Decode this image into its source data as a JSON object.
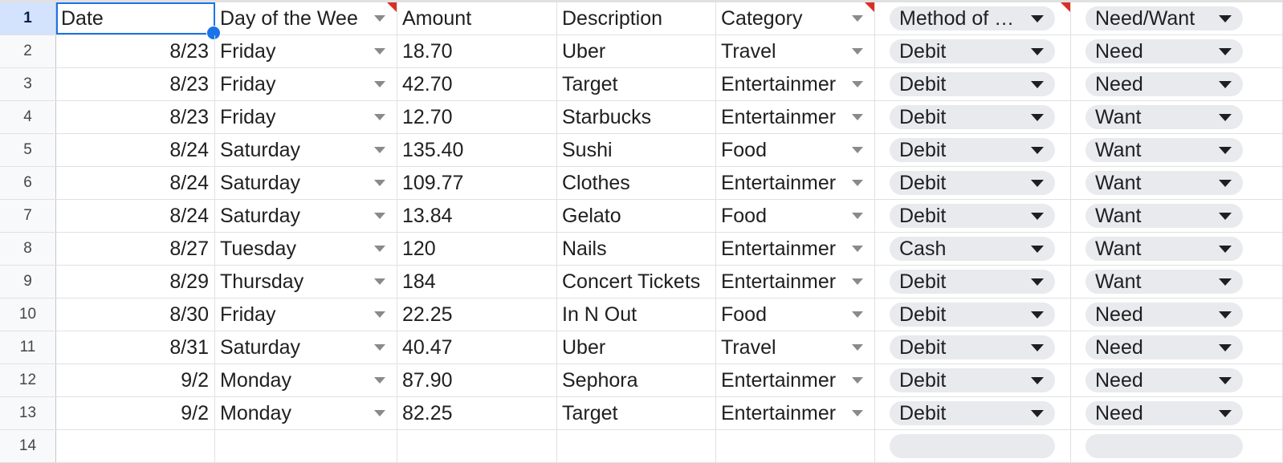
{
  "headers": {
    "row_number": "1",
    "date": "Date",
    "day": "Day of the Wee",
    "amount": "Amount",
    "description": "Description",
    "category": "Category",
    "method": "Method of Payment",
    "need_want": "Need/Want"
  },
  "rows": [
    {
      "num": "2",
      "date": "8/23",
      "day": "Friday",
      "amount": "18.70",
      "description": "Uber",
      "category": "Travel",
      "method": "Debit",
      "need_want": "Need"
    },
    {
      "num": "3",
      "date": "8/23",
      "day": "Friday",
      "amount": "42.70",
      "description": "Target",
      "category": "Entertainmer",
      "method": "Debit",
      "need_want": "Need"
    },
    {
      "num": "4",
      "date": "8/23",
      "day": "Friday",
      "amount": "12.70",
      "description": "Starbucks",
      "category": "Entertainmer",
      "method": "Debit",
      "need_want": "Want"
    },
    {
      "num": "5",
      "date": "8/24",
      "day": "Saturday",
      "amount": "135.40",
      "description": "Sushi",
      "category": "Food",
      "method": "Debit",
      "need_want": "Want"
    },
    {
      "num": "6",
      "date": "8/24",
      "day": "Saturday",
      "amount": "109.77",
      "description": "Clothes",
      "category": "Entertainmer",
      "method": "Debit",
      "need_want": "Want"
    },
    {
      "num": "7",
      "date": "8/24",
      "day": "Saturday",
      "amount": "13.84",
      "description": "Gelato",
      "category": "Food",
      "method": "Debit",
      "need_want": "Want"
    },
    {
      "num": "8",
      "date": "8/27",
      "day": "Tuesday",
      "amount": "120",
      "description": "Nails",
      "category": "Entertainmer",
      "method": "Cash",
      "need_want": "Want"
    },
    {
      "num": "9",
      "date": "8/29",
      "day": "Thursday",
      "amount": "184",
      "description": "Concert Tickets",
      "category": "Entertainmer",
      "method": "Debit",
      "need_want": "Want"
    },
    {
      "num": "10",
      "date": "8/30",
      "day": "Friday",
      "amount": "22.25",
      "description": "In N Out",
      "category": "Food",
      "method": "Debit",
      "need_want": "Need"
    },
    {
      "num": "11",
      "date": "8/31",
      "day": "Saturday",
      "amount": "40.47",
      "description": "Uber",
      "category": "Travel",
      "method": "Debit",
      "need_want": "Need"
    },
    {
      "num": "12",
      "date": "9/2",
      "day": "Monday",
      "amount": "87.90",
      "description": "Sephora",
      "category": "Entertainmer",
      "method": "Debit",
      "need_want": "Need"
    },
    {
      "num": "13",
      "date": "9/2",
      "day": "Monday",
      "amount": "82.25",
      "description": "Target",
      "category": "Entertainmer",
      "method": "Debit",
      "need_want": "Need"
    }
  ],
  "next_row_number": "14",
  "colors": {
    "selection": "#1a73e8",
    "chip_background": "#e8eaed",
    "note_flag": "#d93025",
    "active_row_header": "#d3e3fd"
  }
}
